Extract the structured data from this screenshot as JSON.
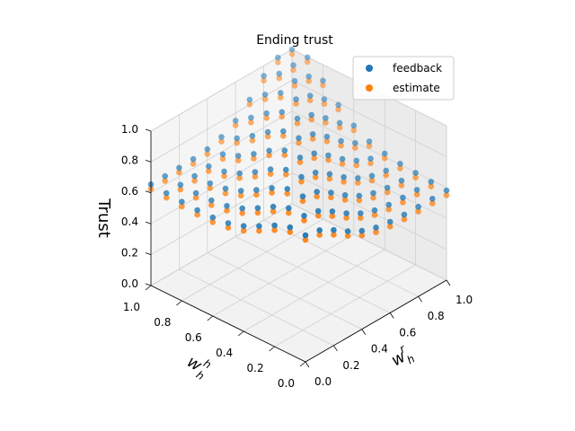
{
  "chart_data": {
    "type": "scatter3d",
    "title": "Ending trust",
    "zlabel": "Trust",
    "xlabel_base": "w",
    "xlabel_sup": "r",
    "xlabel_sub": "h",
    "ylabel_base": "w",
    "ylabel_sup": "h",
    "ylabel_sub": "h",
    "x_ticks": [
      "0.0",
      "0.2",
      "0.4",
      "0.6",
      "0.8",
      "1.0"
    ],
    "y_ticks": [
      "0.0",
      "0.2",
      "0.4",
      "0.6",
      "0.8",
      "1.0"
    ],
    "z_ticks": [
      "0.0",
      "0.2",
      "0.4",
      "0.6",
      "0.8",
      "1.0"
    ],
    "xlim": [
      0,
      1
    ],
    "ylim": [
      0,
      1
    ],
    "zlim": [
      0,
      1
    ],
    "grid": true,
    "legend_position": "top-right",
    "series": [
      {
        "name": "feedback",
        "color": "#1f77b4"
      },
      {
        "name": "estimate",
        "color": "#ff7f0e"
      }
    ],
    "surface_model": {
      "grid_steps": 11,
      "description_note": "",
      "base": 0.58,
      "peak": 0.98,
      "ridge_sharpness": 9,
      "feedback_offset": 0.0,
      "estimate_offset": -0.03
    }
  }
}
